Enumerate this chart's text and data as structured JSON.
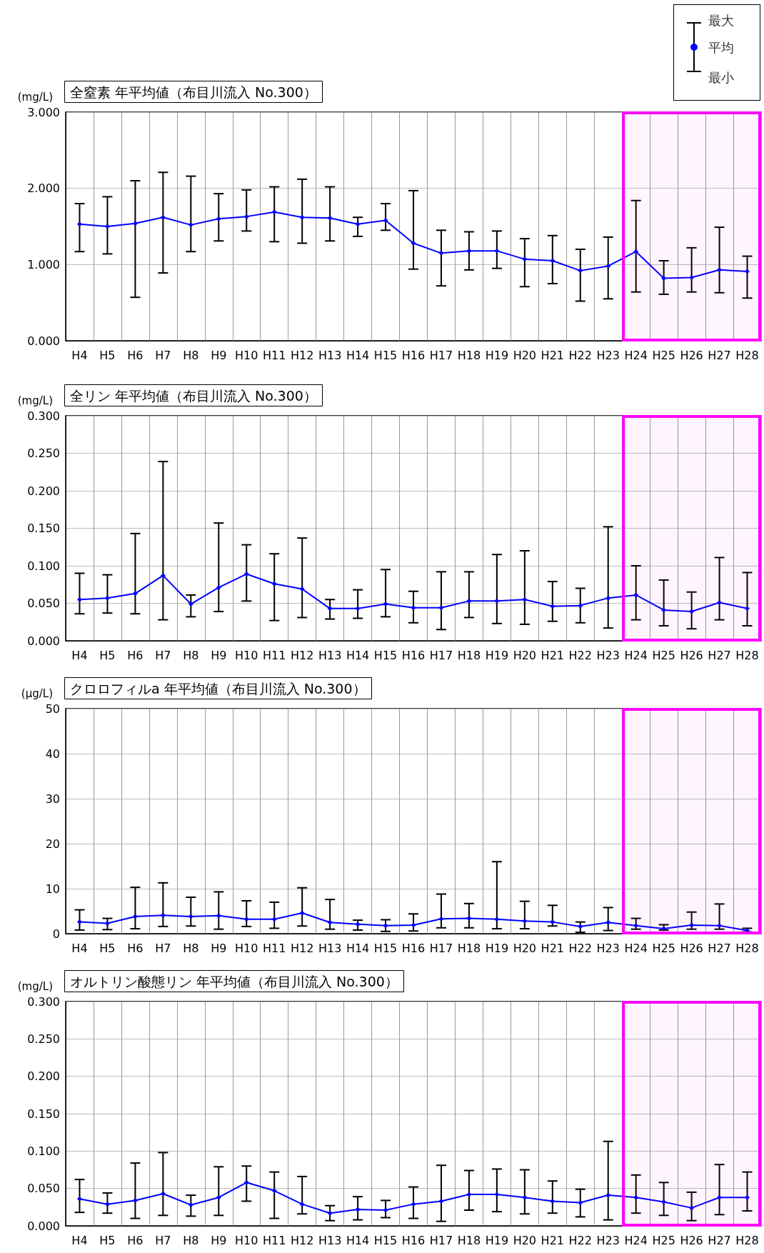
{
  "chart_data": [
    {
      "type": "line",
      "title": "全窒素 年平均値（布目川流入 No.300）",
      "ylabel": "(mg/L)",
      "annotations": [
        "最大",
        "平均",
        "最小"
      ],
      "categories": [
        "H4",
        "H5",
        "H6",
        "H7",
        "H8",
        "H9",
        "H10",
        "H11",
        "H12",
        "H13",
        "H14",
        "H15",
        "H16",
        "H17",
        "H18",
        "H19",
        "H20",
        "H21",
        "H22",
        "H23",
        "H24",
        "H25",
        "H26",
        "H27",
        "H28"
      ],
      "series": [
        {
          "color": "#0000ff",
          "values": [
            1.53,
            1.5,
            1.54,
            1.62,
            1.52,
            1.6,
            1.63,
            1.69,
            1.62,
            1.61,
            1.53,
            1.58,
            1.28,
            1.15,
            1.18,
            1.18,
            1.07,
            1.05,
            0.92,
            0.98,
            1.17,
            0.82,
            0.83,
            0.93,
            0.91
          ],
          "errors": [
            [
              1.17,
              1.8
            ],
            [
              1.14,
              1.89
            ],
            [
              0.57,
              2.1
            ],
            [
              0.89,
              2.21
            ],
            [
              1.17,
              2.16
            ],
            [
              1.31,
              1.93
            ],
            [
              1.44,
              1.98
            ],
            [
              1.3,
              2.02
            ],
            [
              1.28,
              2.12
            ],
            [
              1.31,
              2.02
            ],
            [
              1.37,
              1.62
            ],
            [
              1.45,
              1.8
            ],
            [
              0.94,
              1.97
            ],
            [
              0.72,
              1.45
            ],
            [
              0.93,
              1.43
            ],
            [
              0.95,
              1.44
            ],
            [
              0.71,
              1.34
            ],
            [
              0.75,
              1.38
            ],
            [
              0.52,
              1.2
            ],
            [
              0.55,
              1.36
            ],
            [
              0.64,
              1.84
            ],
            [
              0.61,
              1.05
            ],
            [
              0.64,
              1.22
            ],
            [
              0.63,
              1.49
            ],
            [
              0.56,
              1.11
            ]
          ]
        }
      ],
      "ylim": [
        0,
        3
      ],
      "yticks": [
        {
          "value": 0,
          "label": "0.000"
        },
        {
          "value": 1,
          "label": "1.000"
        },
        {
          "value": 2,
          "label": "2.000"
        },
        {
          "value": 3,
          "label": "3.000"
        }
      ],
      "bands": [
        {
          "axis": "x",
          "from": "H24",
          "to": "H28",
          "color": "#ff00ff"
        }
      ],
      "grid": true,
      "marker": "diamond",
      "line_style": "solid"
    },
    {
      "type": "line",
      "title": "全リン 年平均値（布目川流入 No.300）",
      "ylabel": "(mg/L)",
      "categories": [
        "H4",
        "H5",
        "H6",
        "H7",
        "H8",
        "H9",
        "H10",
        "H11",
        "H12",
        "H13",
        "H14",
        "H15",
        "H16",
        "H17",
        "H18",
        "H19",
        "H20",
        "H21",
        "H22",
        "H23",
        "H24",
        "H25",
        "H26",
        "H27",
        "H28"
      ],
      "series": [
        {
          "color": "#0000ff",
          "values": [
            0.055,
            0.057,
            0.063,
            0.087,
            0.049,
            0.071,
            0.089,
            0.076,
            0.069,
            0.043,
            0.043,
            0.049,
            0.044,
            0.044,
            0.053,
            0.053,
            0.055,
            0.046,
            0.047,
            0.057,
            0.061,
            0.041,
            0.039,
            0.051,
            0.043
          ],
          "errors": [
            [
              0.036,
              0.09
            ],
            [
              0.037,
              0.088
            ],
            [
              0.036,
              0.143
            ],
            [
              0.028,
              0.239
            ],
            [
              0.032,
              0.061
            ],
            [
              0.039,
              0.157
            ],
            [
              0.053,
              0.128
            ],
            [
              0.027,
              0.116
            ],
            [
              0.031,
              0.137
            ],
            [
              0.029,
              0.055
            ],
            [
              0.03,
              0.068
            ],
            [
              0.032,
              0.095
            ],
            [
              0.024,
              0.066
            ],
            [
              0.015,
              0.092
            ],
            [
              0.031,
              0.092
            ],
            [
              0.023,
              0.115
            ],
            [
              0.022,
              0.12
            ],
            [
              0.026,
              0.079
            ],
            [
              0.024,
              0.07
            ],
            [
              0.017,
              0.152
            ],
            [
              0.028,
              0.1
            ],
            [
              0.02,
              0.081
            ],
            [
              0.016,
              0.065
            ],
            [
              0.028,
              0.111
            ],
            [
              0.02,
              0.091
            ]
          ]
        }
      ],
      "ylim": [
        0,
        0.3
      ],
      "yticks": [
        {
          "value": 0,
          "label": "0.000"
        },
        {
          "value": 0.05,
          "label": "0.050"
        },
        {
          "value": 0.1,
          "label": "0.100"
        },
        {
          "value": 0.15,
          "label": "0.150"
        },
        {
          "value": 0.2,
          "label": "0.200"
        },
        {
          "value": 0.25,
          "label": "0.250"
        },
        {
          "value": 0.3,
          "label": "0.300"
        }
      ],
      "bands": [
        {
          "axis": "x",
          "from": "H24",
          "to": "H28",
          "color": "#ff00ff"
        }
      ],
      "grid": true,
      "marker": "diamond",
      "line_style": "solid"
    },
    {
      "type": "line",
      "title": "クロロフィルa 年平均値（布目川流入 No.300）",
      "ylabel": "(μg/L)",
      "categories": [
        "H4",
        "H5",
        "H6",
        "H7",
        "H8",
        "H9",
        "H10",
        "H11",
        "H12",
        "H13",
        "H14",
        "H15",
        "H16",
        "H17",
        "H18",
        "H19",
        "H20",
        "H21",
        "H22",
        "H23",
        "H24",
        "H25",
        "H26",
        "H27",
        "H28"
      ],
      "series": [
        {
          "color": "#0000ff",
          "values": [
            2.6,
            2.3,
            3.8,
            4.1,
            3.8,
            4.0,
            3.2,
            3.2,
            4.6,
            2.5,
            2.1,
            1.8,
            1.9,
            3.3,
            3.4,
            3.2,
            2.8,
            2.6,
            1.6,
            2.5,
            1.8,
            1.1,
            1.9,
            1.8,
            0.7
          ],
          "errors": [
            [
              0.8,
              5.3
            ],
            [
              0.9,
              3.4
            ],
            [
              1.1,
              10.3
            ],
            [
              1.6,
              11.3
            ],
            [
              1.7,
              8.1
            ],
            [
              1.0,
              9.3
            ],
            [
              1.6,
              7.3
            ],
            [
              1.2,
              7.0
            ],
            [
              1.7,
              10.2
            ],
            [
              1.0,
              7.6
            ],
            [
              0.8,
              3.0
            ],
            [
              0.5,
              3.1
            ],
            [
              0.6,
              4.4
            ],
            [
              1.3,
              8.8
            ],
            [
              1.3,
              6.7
            ],
            [
              1.1,
              16.0
            ],
            [
              1.1,
              7.2
            ],
            [
              1.7,
              6.3
            ],
            [
              0.3,
              2.6
            ],
            [
              0.7,
              5.8
            ],
            [
              1.0,
              3.4
            ],
            [
              0.8,
              2.0
            ],
            [
              1.0,
              4.8
            ],
            [
              1.0,
              6.6
            ],
            [
              0.4,
              1.2
            ]
          ]
        }
      ],
      "ylim": [
        0,
        50
      ],
      "yticks": [
        0,
        10,
        20,
        30,
        40,
        50
      ],
      "bands": [
        {
          "axis": "x",
          "from": "H24",
          "to": "H28",
          "color": "#ff00ff"
        }
      ],
      "grid": true,
      "marker": "diamond",
      "line_style": "solid"
    },
    {
      "type": "line",
      "title": "オルトリン酸態リン 年平均値（布目川流入 No.300）",
      "ylabel": "(mg/L)",
      "categories": [
        "H4",
        "H5",
        "H6",
        "H7",
        "H8",
        "H9",
        "H10",
        "H11",
        "H12",
        "H13",
        "H14",
        "H15",
        "H16",
        "H17",
        "H18",
        "H19",
        "H20",
        "H21",
        "H22",
        "H23",
        "H24",
        "H25",
        "H26",
        "H27",
        "H28"
      ],
      "series": [
        {
          "color": "#0000ff",
          "values": [
            0.036,
            0.029,
            0.034,
            0.043,
            0.028,
            0.038,
            0.058,
            0.047,
            0.029,
            0.017,
            0.022,
            0.021,
            0.029,
            0.033,
            0.042,
            0.042,
            0.038,
            0.033,
            0.031,
            0.041,
            0.038,
            0.032,
            0.024,
            0.038,
            0.038
          ],
          "errors": [
            [
              0.018,
              0.062
            ],
            [
              0.017,
              0.044
            ],
            [
              0.01,
              0.084
            ],
            [
              0.014,
              0.098
            ],
            [
              0.013,
              0.041
            ],
            [
              0.014,
              0.079
            ],
            [
              0.033,
              0.08
            ],
            [
              0.01,
              0.072
            ],
            [
              0.016,
              0.066
            ],
            [
              0.007,
              0.027
            ],
            [
              0.008,
              0.039
            ],
            [
              0.011,
              0.034
            ],
            [
              0.01,
              0.052
            ],
            [
              0.006,
              0.081
            ],
            [
              0.021,
              0.074
            ],
            [
              0.019,
              0.076
            ],
            [
              0.016,
              0.075
            ],
            [
              0.017,
              0.06
            ],
            [
              0.012,
              0.049
            ],
            [
              0.008,
              0.113
            ],
            [
              0.017,
              0.068
            ],
            [
              0.014,
              0.058
            ],
            [
              0.007,
              0.045
            ],
            [
              0.015,
              0.082
            ],
            [
              0.02,
              0.072
            ]
          ]
        }
      ],
      "ylim": [
        0,
        0.3
      ],
      "yticks": [
        {
          "value": 0,
          "label": "0.000"
        },
        {
          "value": 0.05,
          "label": "0.050"
        },
        {
          "value": 0.1,
          "label": "0.100"
        },
        {
          "value": 0.15,
          "label": "0.150"
        },
        {
          "value": 0.2,
          "label": "0.200"
        },
        {
          "value": 0.25,
          "label": "0.250"
        },
        {
          "value": 0.3,
          "label": "0.300"
        }
      ],
      "bands": [
        {
          "axis": "x",
          "from": "H24",
          "to": "H28",
          "color": "#ff00ff"
        }
      ],
      "grid": true,
      "marker": "diamond",
      "line_style": "solid"
    }
  ]
}
